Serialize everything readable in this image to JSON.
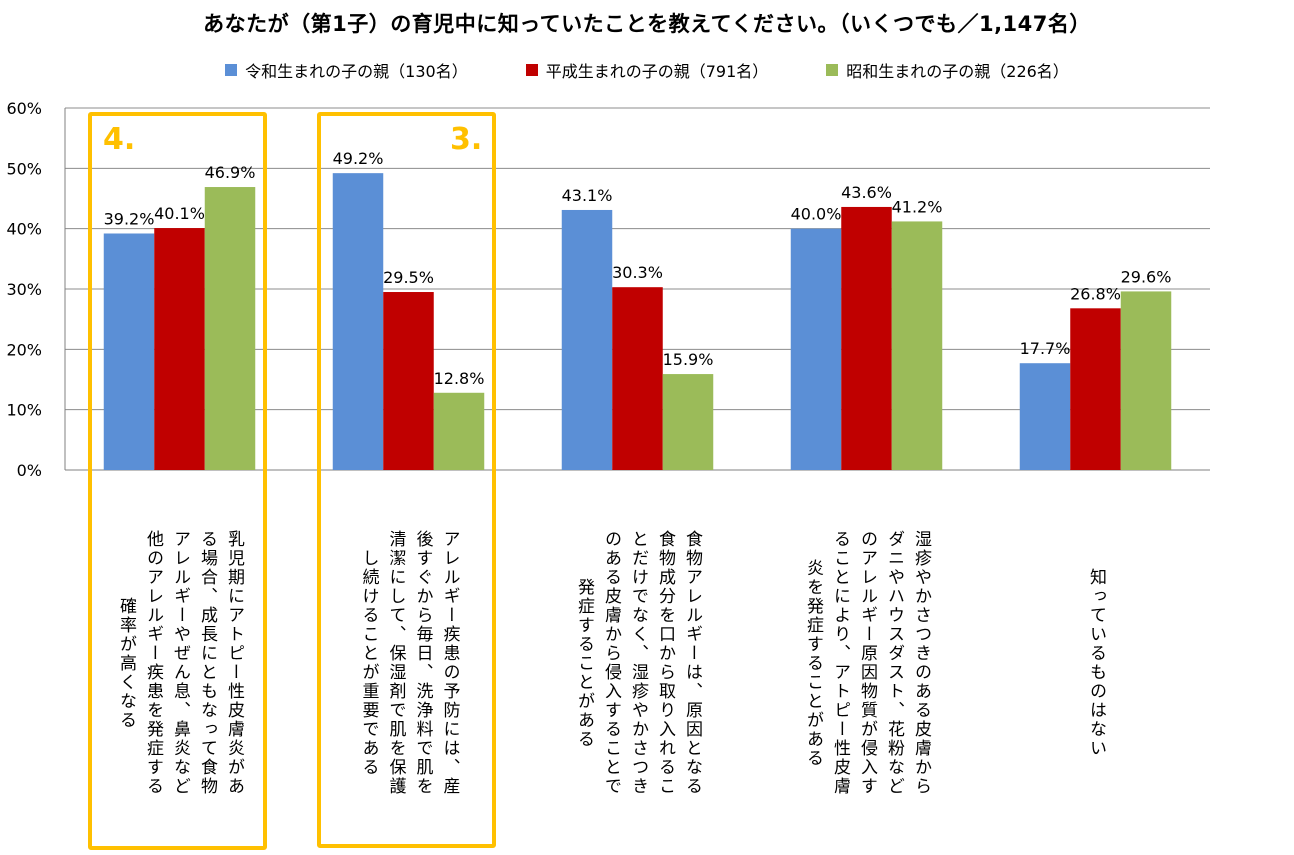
{
  "chart_data": {
    "type": "bar",
    "title": "あなたが（第1子）の育児中に知っていたことを教えてください。（いくつでも／1,147名）",
    "ylim": [
      0,
      60
    ],
    "yticks": [
      "0%",
      "10%",
      "20%",
      "30%",
      "40%",
      "50%",
      "60%"
    ],
    "grid": true,
    "legend_position": "top",
    "categories": [
      "乳児期にアトピー性皮膚炎がある場合、成長にともなって食物アレルギーやぜん息、鼻炎など他のアレルギー疾患を発症する確率が高くなる",
      "アレルギー疾患の予防には、産後すぐから毎日、洗浄料で肌を清潔にして、保湿剤で肌を保護し続けることが重要である",
      "食物アレルギーは、原因となる食物成分を口から取り入れることだけでなく、湿疹やかさつきのある皮膚から侵入することで発症することがある",
      "湿疹やかさつきのある皮膚からダニやハウスダスト、花粉などのアレルギー原因物質が侵入することにより、アトピー性皮膚炎を発症することがある",
      "知っているものはない"
    ],
    "series": [
      {
        "name": "令和生まれの子の親（130名）",
        "color": "#5B8FD6",
        "values": [
          39.2,
          49.2,
          43.1,
          40.0,
          17.7
        ],
        "labels": [
          "39.2%",
          "49.2%",
          "43.1%",
          "40.0%",
          "17.7%"
        ]
      },
      {
        "name": "平成生まれの子の親（791名）",
        "color": "#C00000",
        "values": [
          40.1,
          29.5,
          30.3,
          43.6,
          26.8
        ],
        "labels": [
          "40.1%",
          "29.5%",
          "30.3%",
          "43.6%",
          "26.8%"
        ]
      },
      {
        "name": "昭和生まれの子の親（226名）",
        "color": "#9BBB59",
        "values": [
          46.9,
          12.8,
          15.9,
          41.2,
          29.6
        ],
        "labels": [
          "46.9%",
          "12.8%",
          "15.9%",
          "41.2%",
          "29.6%"
        ]
      }
    ],
    "annotations": [
      "4.",
      "3."
    ],
    "highlight_color": "#FFC000"
  },
  "category_lines": [
    [
      "乳児期にアトピー性皮膚炎があ",
      "る場合、成長にともなって食物",
      "アレルギーやぜん息、鼻炎など",
      "他のアレルギー疾患を発症する",
      "確率が高くなる"
    ],
    [
      "アレルギー疾患の予防には、産",
      "後すぐから毎日、洗浄料で肌を",
      "清潔にして、保湿剤で肌を保護",
      "し続けることが重要である"
    ],
    [
      "食物アレルギーは、原因となる",
      "食物成分を口から取り入れるこ",
      "とだけでなく、湿疹やかさつき",
      "のある皮膚から侵入することで",
      "発症することがある"
    ],
    [
      "湿疹やかさつきのある皮膚から",
      "ダニやハウスダスト、花粉など",
      "のアレルギー原因物質が侵入す",
      "ることにより、アトピー性皮膚",
      "炎を発症することがある"
    ],
    [
      "知っているものはない"
    ]
  ]
}
